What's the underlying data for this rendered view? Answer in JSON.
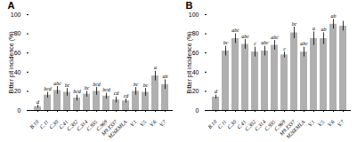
{
  "chart_data": [
    {
      "type": "bar",
      "title": "A",
      "categories": [
        "B.10",
        "C.11",
        "C.30",
        "C.41",
        "C.302",
        "C.314",
        "C.935",
        "C.969",
        "M9.T337",
        "M26EMLA",
        "V.1",
        "V.5",
        "V.6",
        "V.7"
      ],
      "values": [
        4,
        16,
        21,
        19,
        13,
        17,
        20,
        15,
        11,
        10,
        20,
        19,
        36,
        27
      ],
      "errors": [
        1.5,
        3,
        4,
        4,
        3,
        3,
        4,
        3,
        3,
        2,
        4,
        4,
        5,
        5
      ],
      "annotations": [
        "d",
        "bcd",
        "abc",
        "bc",
        "bcd",
        "bc",
        "bcd",
        "bcd",
        "cd",
        "cd",
        "bc",
        "bc",
        "a",
        "ab"
      ],
      "ylabel": "Bitter pit incidence (%)",
      "ylim": [
        0,
        100
      ],
      "yticks": [
        0,
        20,
        40,
        60,
        80,
        100
      ],
      "color": "#b0b0b0"
    },
    {
      "type": "bar",
      "title": "B",
      "categories": [
        "B.10",
        "C.11",
        "C.30",
        "C.41",
        "C.302",
        "C.314",
        "C.935",
        "C.969",
        "M9.T337",
        "M26EMLA",
        "V.1",
        "V.5",
        "V.6",
        "V.7"
      ],
      "values": [
        14,
        62,
        75,
        69,
        61,
        62,
        68,
        58,
        81,
        61,
        75,
        75,
        90,
        88
      ],
      "errors": [
        2,
        5,
        5,
        5,
        5,
        5,
        5,
        3,
        6,
        5,
        7,
        6,
        5,
        5
      ],
      "annotations": [
        "d",
        "bc",
        "abc",
        "abc",
        "c",
        "abc",
        "abc",
        "c",
        "bc",
        "abc",
        "a",
        "ab",
        "ab",
        null
      ],
      "ylabel": "Bitter pit incidence (%)",
      "ylim": [
        0,
        100
      ],
      "yticks": [
        0,
        20,
        40,
        60,
        80,
        100
      ],
      "color": "#b0b0b0"
    }
  ]
}
